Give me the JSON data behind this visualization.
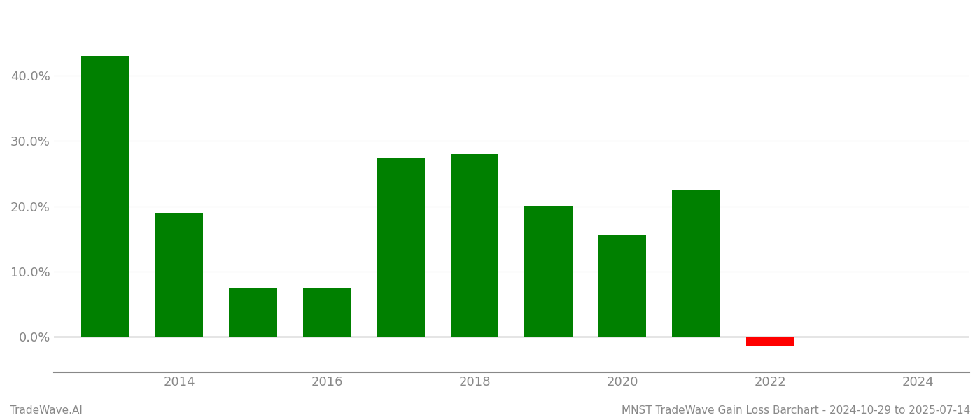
{
  "years": [
    2013,
    2014,
    2015,
    2016,
    2017,
    2018,
    2019,
    2020,
    2021,
    2022,
    2023
  ],
  "values": [
    0.43,
    0.19,
    0.075,
    0.075,
    0.275,
    0.28,
    0.201,
    0.155,
    0.225,
    -0.015,
    0.0
  ],
  "colors": [
    "#008000",
    "#008000",
    "#008000",
    "#008000",
    "#008000",
    "#008000",
    "#008000",
    "#008000",
    "#008000",
    "#ff0000",
    "#ffffff"
  ],
  "xlim": [
    2012.3,
    2024.7
  ],
  "ylim": [
    -0.055,
    0.5
  ],
  "footer_left": "TradeWave.AI",
  "footer_right": "MNST TradeWave Gain Loss Barchart - 2024-10-29 to 2025-07-14",
  "yticks": [
    0.0,
    0.1,
    0.2,
    0.3,
    0.4
  ],
  "ytick_labels": [
    "0.0%",
    "10.0%",
    "20.0%",
    "30.0%",
    "40.0%"
  ],
  "xticks": [
    2014,
    2016,
    2018,
    2020,
    2022,
    2024
  ],
  "bar_width": 0.65,
  "background_color": "#ffffff",
  "grid_color": "#cccccc",
  "spine_color": "#888888",
  "tick_color": "#888888",
  "footer_fontsize": 11,
  "tick_fontsize": 13
}
